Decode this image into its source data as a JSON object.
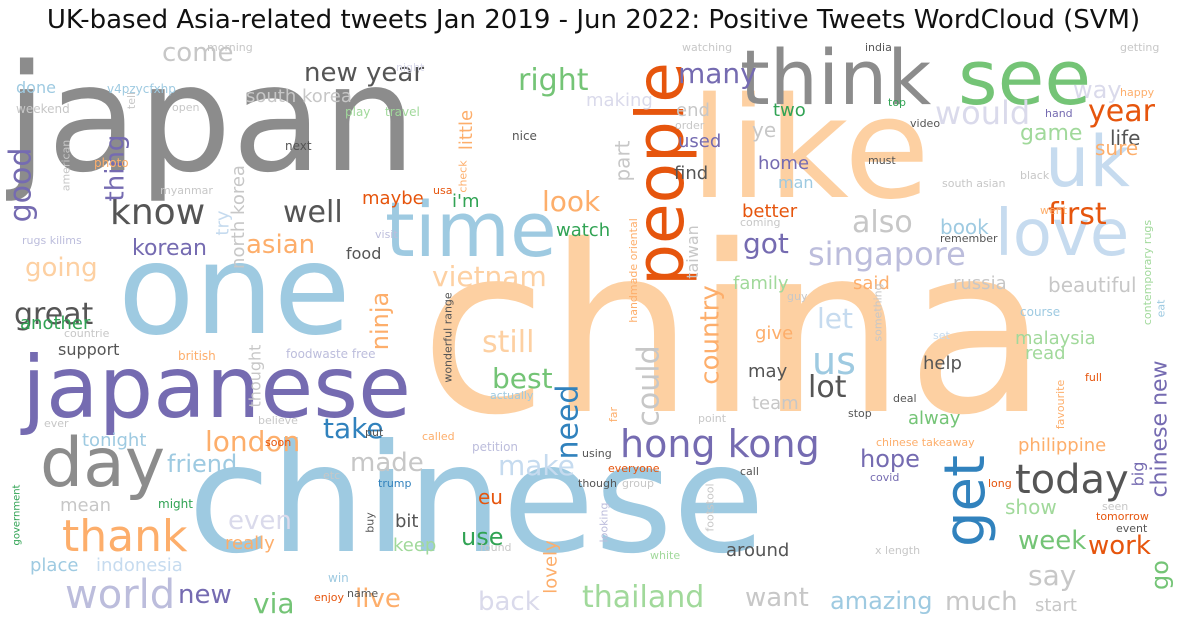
{
  "title": "UK-based Asia-related tweets Jan 2019 - Jun 2022: Positive Tweets WordCloud (SVM)",
  "colors": {
    "gray": "#8c8c8c",
    "lightgray": "#c7c7c7",
    "darkgray": "#555555",
    "blue": "#9ecae1",
    "darkblue": "#3182bd",
    "paleblue": "#c6dbef",
    "orange": "#e6550d",
    "peach": "#fdd0a2",
    "lightorange": "#fdae6b",
    "purple": "#756bb1",
    "lavender": "#bcbddc",
    "palepurple": "#dadaeb",
    "green": "#74c476",
    "lightgreen": "#a1d99b",
    "darkgreen": "#31a354"
  },
  "words": [
    {
      "text": "japan",
      "color": "gray"
    },
    {
      "text": "china",
      "color": "peach"
    },
    {
      "text": "chinese",
      "color": "blue"
    },
    {
      "text": "one",
      "color": "blue"
    },
    {
      "text": "like",
      "color": "peach"
    },
    {
      "text": "japanese",
      "color": "purple"
    },
    {
      "text": "think",
      "color": "gray"
    },
    {
      "text": "see",
      "color": "green"
    },
    {
      "text": "people",
      "color": "orange"
    },
    {
      "text": "time",
      "color": "blue"
    },
    {
      "text": "day",
      "color": "gray"
    },
    {
      "text": "uk",
      "color": "paleblue"
    },
    {
      "text": "love",
      "color": "paleblue"
    },
    {
      "text": "get",
      "color": "darkblue"
    },
    {
      "text": "thank",
      "color": "lightorange"
    },
    {
      "text": "hong kong",
      "color": "purple"
    },
    {
      "text": "today",
      "color": "darkgray"
    },
    {
      "text": "world",
      "color": "lavender"
    },
    {
      "text": "know",
      "color": "darkgray"
    },
    {
      "text": "well",
      "color": "darkgray"
    },
    {
      "text": "us",
      "color": "blue"
    },
    {
      "text": "singapore",
      "color": "lavender"
    },
    {
      "text": "also",
      "color": "lightgray"
    },
    {
      "text": "would",
      "color": "palepurple"
    },
    {
      "text": "new year",
      "color": "darkgray"
    },
    {
      "text": "right",
      "color": "green"
    },
    {
      "text": "many",
      "color": "purple"
    },
    {
      "text": "year",
      "color": "orange"
    },
    {
      "text": "first",
      "color": "orange"
    },
    {
      "text": "good",
      "color": "purple"
    },
    {
      "text": "great",
      "color": "darkgray"
    },
    {
      "text": "going",
      "color": "peach"
    },
    {
      "text": "asian",
      "color": "lightorange"
    },
    {
      "text": "vietnam",
      "color": "peach"
    },
    {
      "text": "korean",
      "color": "purple"
    },
    {
      "text": "come",
      "color": "lightgray"
    },
    {
      "text": "thing",
      "color": "purple"
    },
    {
      "text": "look",
      "color": "lightorange"
    },
    {
      "text": "got",
      "color": "purple"
    },
    {
      "text": "still",
      "color": "peach"
    },
    {
      "text": "best",
      "color": "green"
    },
    {
      "text": "need",
      "color": "darkblue"
    },
    {
      "text": "could",
      "color": "lightgray"
    },
    {
      "text": "country",
      "color": "lightorange"
    },
    {
      "text": "lot",
      "color": "darkgray"
    },
    {
      "text": "let",
      "color": "paleblue"
    },
    {
      "text": "take",
      "color": "darkblue"
    },
    {
      "text": "london",
      "color": "lightorange"
    },
    {
      "text": "made",
      "color": "lightgray"
    },
    {
      "text": "make",
      "color": "paleblue"
    },
    {
      "text": "friend",
      "color": "blue"
    },
    {
      "text": "hope",
      "color": "purple"
    },
    {
      "text": "chinese new",
      "color": "purple"
    },
    {
      "text": "say",
      "color": "lightgray"
    },
    {
      "text": "work",
      "color": "orange"
    },
    {
      "text": "week",
      "color": "green"
    },
    {
      "text": "go",
      "color": "green"
    },
    {
      "text": "thailand",
      "color": "lightgreen"
    },
    {
      "text": "want",
      "color": "lightgray"
    },
    {
      "text": "amazing",
      "color": "blue"
    },
    {
      "text": "much",
      "color": "lightgray"
    },
    {
      "text": "via",
      "color": "green"
    },
    {
      "text": "live",
      "color": "lightorange"
    },
    {
      "text": "back",
      "color": "palepurple"
    },
    {
      "text": "new",
      "color": "purple"
    },
    {
      "text": "even",
      "color": "palepurple"
    },
    {
      "text": "ninja",
      "color": "lightorange"
    },
    {
      "text": "way",
      "color": "palepurple"
    },
    {
      "text": "game",
      "color": "lightgreen"
    },
    {
      "text": "life",
      "color": "darkgray"
    },
    {
      "text": "sure",
      "color": "lightorange"
    },
    {
      "text": "ye",
      "color": "lightgray"
    },
    {
      "text": "used",
      "color": "purple"
    },
    {
      "text": "home",
      "color": "purple"
    },
    {
      "text": "man",
      "color": "blue"
    },
    {
      "text": "find",
      "color": "darkgray"
    },
    {
      "text": "south korea",
      "color": "lightgray"
    },
    {
      "text": "north korea",
      "color": "lightgray"
    },
    {
      "text": "i'm",
      "color": "darkgreen"
    },
    {
      "text": "maybe",
      "color": "orange"
    },
    {
      "text": "watch",
      "color": "darkgreen"
    },
    {
      "text": "food",
      "color": "darkgray"
    },
    {
      "text": "try",
      "color": "paleblue"
    },
    {
      "text": "part",
      "color": "lightgray"
    },
    {
      "text": "end",
      "color": "lightgray"
    },
    {
      "text": "two",
      "color": "darkgreen"
    },
    {
      "text": "making",
      "color": "palepurple"
    },
    {
      "text": "little",
      "color": "lightorange"
    },
    {
      "text": "book",
      "color": "blue"
    },
    {
      "text": "better",
      "color": "orange"
    },
    {
      "text": "said",
      "color": "lightorange"
    },
    {
      "text": "family",
      "color": "lightgreen"
    },
    {
      "text": "russia",
      "color": "lightgray"
    },
    {
      "text": "beautiful",
      "color": "lightgray"
    },
    {
      "text": "malaysia",
      "color": "lightgreen"
    },
    {
      "text": "read",
      "color": "lightgreen"
    },
    {
      "text": "help",
      "color": "darkgray"
    },
    {
      "text": "may",
      "color": "darkgray"
    },
    {
      "text": "team",
      "color": "lightgray"
    },
    {
      "text": "alway",
      "color": "green"
    },
    {
      "text": "philippine",
      "color": "lightorange"
    },
    {
      "text": "show",
      "color": "lightgreen"
    },
    {
      "text": "big",
      "color": "purple"
    },
    {
      "text": "give",
      "color": "lightorange"
    },
    {
      "text": "another",
      "color": "darkgreen"
    },
    {
      "text": "support",
      "color": "darkgray"
    },
    {
      "text": "tonight",
      "color": "blue"
    },
    {
      "text": "mean",
      "color": "lightgray"
    },
    {
      "text": "place",
      "color": "blue"
    },
    {
      "text": "indonesia",
      "color": "paleblue"
    },
    {
      "text": "really",
      "color": "lightorange"
    },
    {
      "text": "bit",
      "color": "darkgray"
    },
    {
      "text": "keep",
      "color": "lightgreen"
    },
    {
      "text": "eu",
      "color": "orange"
    },
    {
      "text": "use",
      "color": "darkgreen"
    },
    {
      "text": "lovely",
      "color": "lightorange"
    },
    {
      "text": "around",
      "color": "darkgray"
    },
    {
      "text": "start",
      "color": "lightgray"
    },
    {
      "text": "thought",
      "color": "lightgray"
    },
    {
      "text": "taiwan",
      "color": "lightgray"
    },
    {
      "text": "done",
      "color": "blue"
    },
    {
      "text": "v4pzycfxhp",
      "color": "blue"
    },
    {
      "text": "next",
      "color": "darkgray"
    },
    {
      "text": "photo",
      "color": "lightorange"
    },
    {
      "text": "weekend",
      "color": "lightgray"
    },
    {
      "text": "american",
      "color": "lightgray"
    },
    {
      "text": "open",
      "color": "lightgray"
    },
    {
      "text": "tell",
      "color": "lightgray"
    },
    {
      "text": "myanmar",
      "color": "lightgray"
    },
    {
      "text": "rugs kilims",
      "color": "lavender"
    },
    {
      "text": "countrie",
      "color": "lightgray"
    },
    {
      "text": "morning",
      "color": "lightgray"
    },
    {
      "text": "night",
      "color": "palepurple"
    },
    {
      "text": "play",
      "color": "lightgreen"
    },
    {
      "text": "travel",
      "color": "lightgreen"
    },
    {
      "text": "visit",
      "color": "lavender"
    },
    {
      "text": "nice",
      "color": "darkgray"
    },
    {
      "text": "check",
      "color": "lightorange"
    },
    {
      "text": "usa",
      "color": "orange"
    },
    {
      "text": "watching",
      "color": "lightgray"
    },
    {
      "text": "order",
      "color": "lightgray"
    },
    {
      "text": "india",
      "color": "darkgray"
    },
    {
      "text": "getting",
      "color": "lightgray"
    },
    {
      "text": "top",
      "color": "darkgreen"
    },
    {
      "text": "happy",
      "color": "lightorange"
    },
    {
      "text": "hand",
      "color": "purple"
    },
    {
      "text": "video",
      "color": "darkgray"
    },
    {
      "text": "must",
      "color": "darkgray"
    },
    {
      "text": "black",
      "color": "lightgray"
    },
    {
      "text": "south asian",
      "color": "lightgray"
    },
    {
      "text": "went",
      "color": "lightorange"
    },
    {
      "text": "coming",
      "color": "lightgray"
    },
    {
      "text": "remember",
      "color": "darkgray"
    },
    {
      "text": "contemporary rugs",
      "color": "lightgreen"
    },
    {
      "text": "eat",
      "color": "blue"
    },
    {
      "text": "handmade oriental",
      "color": "lightorange"
    },
    {
      "text": "guy",
      "color": "lightgray"
    },
    {
      "text": "course",
      "color": "blue"
    },
    {
      "text": "something",
      "color": "lightgray"
    },
    {
      "text": "set",
      "color": "paleblue"
    },
    {
      "text": "full",
      "color": "orange"
    },
    {
      "text": "favourite",
      "color": "lightorange"
    },
    {
      "text": "deal",
      "color": "darkgray"
    },
    {
      "text": "stop",
      "color": "darkgray"
    },
    {
      "text": "point",
      "color": "lightgray"
    },
    {
      "text": "chinese takeaway",
      "color": "lightorange"
    },
    {
      "text": "wonderful range",
      "color": "darkgray"
    },
    {
      "text": "foodwaste free",
      "color": "lavender"
    },
    {
      "text": "british",
      "color": "lightorange"
    },
    {
      "text": "actually",
      "color": "blue"
    },
    {
      "text": "believe",
      "color": "lightgray"
    },
    {
      "text": "put",
      "color": "darkgray"
    },
    {
      "text": "called",
      "color": "lightorange"
    },
    {
      "text": "petition",
      "color": "lavender"
    },
    {
      "text": "far",
      "color": "lightorange"
    },
    {
      "text": "ever",
      "color": "lightgray"
    },
    {
      "text": "soon",
      "color": "orange"
    },
    {
      "text": "etc",
      "color": "lightgray"
    },
    {
      "text": "trump",
      "color": "darkblue"
    },
    {
      "text": "using",
      "color": "darkgray"
    },
    {
      "text": "everyone",
      "color": "orange"
    },
    {
      "text": "though",
      "color": "darkgray"
    },
    {
      "text": "group",
      "color": "lightgray"
    },
    {
      "text": "call",
      "color": "darkgray"
    },
    {
      "text": "covid",
      "color": "purple"
    },
    {
      "text": "long",
      "color": "orange"
    },
    {
      "text": "seen",
      "color": "lightgray"
    },
    {
      "text": "tomorrow",
      "color": "orange"
    },
    {
      "text": "event",
      "color": "darkgray"
    },
    {
      "text": "government",
      "color": "darkgreen"
    },
    {
      "text": "might",
      "color": "darkgreen"
    },
    {
      "text": "buy",
      "color": "darkgray"
    },
    {
      "text": "found",
      "color": "lightgray"
    },
    {
      "text": "footstool",
      "color": "lightgray"
    },
    {
      "text": "looking",
      "color": "lavender"
    },
    {
      "text": "white",
      "color": "lightgreen"
    },
    {
      "text": "x length",
      "color": "lightgray"
    },
    {
      "text": "win",
      "color": "blue"
    },
    {
      "text": "name",
      "color": "darkgray"
    },
    {
      "text": "enjoy",
      "color": "orange"
    }
  ]
}
